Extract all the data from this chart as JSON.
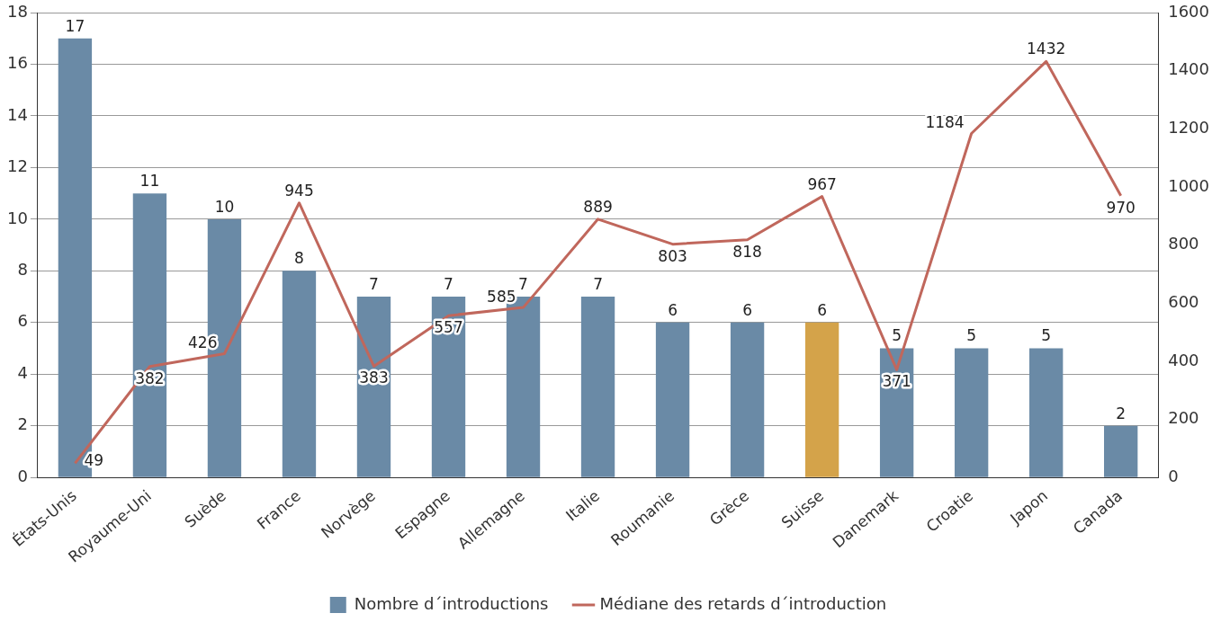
{
  "chart_data": {
    "type": "bar",
    "categories": [
      "États-Unis",
      "Royaume-Uni",
      "Suède",
      "France",
      "Norvège",
      "Espagne",
      "Allemagne",
      "Italie",
      "Roumanie",
      "Grèce",
      "Suisse",
      "Danemark",
      "Croatie",
      "Japon",
      "Canada"
    ],
    "series": [
      {
        "name": "Nombre d´introductions",
        "color": "#6a8aa6",
        "colors": [
          "#6a8aa6",
          "#6a8aa6",
          "#6a8aa6",
          "#6a8aa6",
          "#6a8aa6",
          "#6a8aa6",
          "#6a8aa6",
          "#6a8aa6",
          "#6a8aa6",
          "#6a8aa6",
          "#d4a34a",
          "#6a8aa6",
          "#6a8aa6",
          "#6a8aa6",
          "#6a8aa6"
        ],
        "values": [
          17,
          11,
          10,
          8,
          7,
          7,
          7,
          7,
          6,
          6,
          6,
          5,
          5,
          5,
          2
        ]
      },
      {
        "name": "Médiane des retards d´introduction",
        "type": "line",
        "axis": "y2",
        "color": "#c0675c",
        "values": [
          49,
          382,
          426,
          945,
          383,
          557,
          585,
          889,
          803,
          818,
          967,
          371,
          1184,
          1432,
          970
        ]
      }
    ],
    "ylim": [
      0,
      18
    ],
    "yticks": [
      0,
      2,
      4,
      6,
      8,
      10,
      12,
      14,
      16,
      18
    ],
    "y2lim": [
      0,
      1600
    ],
    "y2ticks": [
      0,
      200,
      400,
      600,
      800,
      1000,
      1200,
      1400,
      1600
    ],
    "grid": "y",
    "legend": "bottom",
    "data_labels": true,
    "marker": "none",
    "line_style": "solid"
  }
}
